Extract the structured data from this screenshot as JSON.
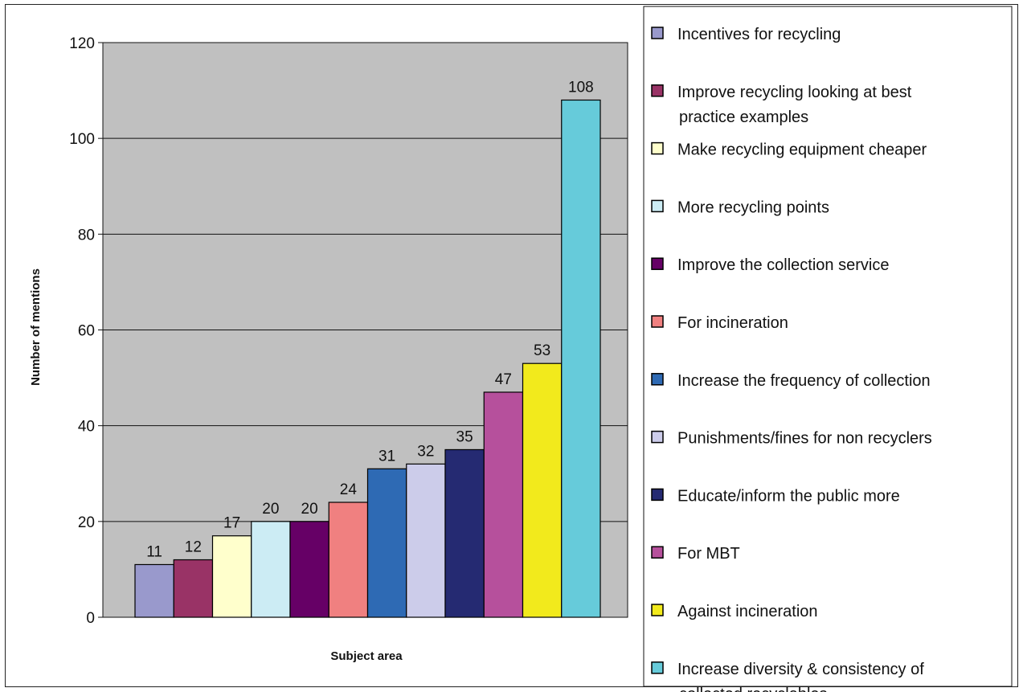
{
  "chart_data": {
    "type": "bar",
    "xlabel": "Subject area",
    "ylabel": "Number of mentions",
    "ylim": [
      0,
      120
    ],
    "yticks": [
      0,
      20,
      40,
      60,
      80,
      100,
      120
    ],
    "grid": true,
    "legend_position": "right",
    "plot_background": "#c0c0c0",
    "categories": [
      "Incentives for recycling",
      "Improve recycling looking at best practice examples",
      "Make recycling equipment cheaper",
      "More recycling points",
      "Improve the collection service",
      "For incineration",
      "Increase the frequency of collection",
      "Punishments/fines for non recyclers",
      "Educate/inform the public more",
      "For  MBT",
      "Against incineration",
      "Increase diversity & consistency of collected recyclables"
    ],
    "legend_lines": [
      [
        "Incentives for recycling"
      ],
      [
        "Improve recycling looking at best",
        "practice examples"
      ],
      [
        "Make recycling equipment cheaper"
      ],
      [
        "More recycling points"
      ],
      [
        "Improve the collection service"
      ],
      [
        "For incineration"
      ],
      [
        "Increase the frequency of collection"
      ],
      [
        "Punishments/fines for non recyclers"
      ],
      [
        "Educate/inform the public more"
      ],
      [
        "For  MBT"
      ],
      [
        "Against incineration"
      ],
      [
        "Increase diversity & consistency of",
        "collected recyclables"
      ]
    ],
    "values": [
      11,
      12,
      17,
      20,
      20,
      24,
      31,
      32,
      35,
      47,
      53,
      108
    ],
    "colors": [
      "#9999cc",
      "#993366",
      "#ffffcc",
      "#ccecf4",
      "#660066",
      "#f08080",
      "#2e6ab4",
      "#ccccea",
      "#252a72",
      "#b6509c",
      "#f2ea1c",
      "#66cbda"
    ]
  }
}
